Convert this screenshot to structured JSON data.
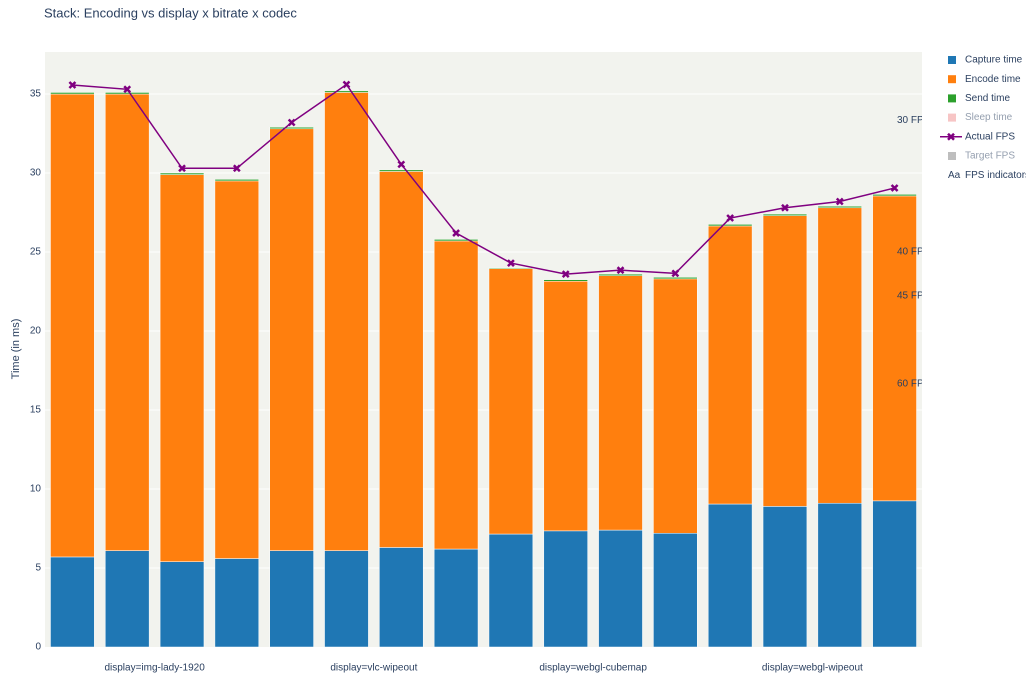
{
  "chart_data": {
    "type": "bar",
    "stacked": true,
    "title": "Stack: Encoding vs display x bitrate x codec",
    "y_label": "Time (in ms)",
    "categories": [
      null,
      null,
      null,
      null,
      null,
      null,
      null,
      null,
      null,
      null,
      null,
      null,
      null,
      null,
      null,
      null
    ],
    "groups": [
      "display=img-lady-1920",
      "display=vlc-wipeout",
      "display=webgl-cubemap",
      "display=webgl-wipeout"
    ],
    "series": [
      {
        "name": "Capture time",
        "color": "#1f77b4",
        "values": [
          5.7,
          6.1,
          5.4,
          5.6,
          6.1,
          6.1,
          6.3,
          6.2,
          7.15,
          7.35,
          7.4,
          7.2,
          9.05,
          8.9,
          9.1,
          9.25
        ]
      },
      {
        "name": "Encode time",
        "color": "#ff7f0e",
        "values": [
          29.3,
          28.9,
          24.5,
          23.9,
          26.7,
          29.0,
          23.8,
          19.5,
          16.8,
          15.8,
          16.1,
          16.1,
          17.6,
          18.4,
          18.7,
          19.3
        ]
      },
      {
        "name": "Send time",
        "color": "#2ca02c",
        "values": [
          0.1,
          0.1,
          0.1,
          0.1,
          0.1,
          0.1,
          0.1,
          0.1,
          0.05,
          0.1,
          0.1,
          0.1,
          0.1,
          0.1,
          0.1,
          0.1
        ]
      },
      {
        "name": "Sleep time",
        "color": "#f08c8c",
        "visible": false
      },
      {
        "name": "Actual FPS",
        "type": "line",
        "color": "#800080",
        "values": [
          35.57,
          35.3,
          30.3,
          30.3,
          33.2,
          35.6,
          30.55,
          26.2,
          24.3,
          23.6,
          23.85,
          23.65,
          27.15,
          27.8,
          28.2,
          29.05
        ]
      },
      {
        "name": "Target FPS",
        "color": "#7f7f7f",
        "visible": false
      },
      {
        "name": "FPS indicators",
        "type": "text",
        "color": "#2a3f5f"
      }
    ],
    "annotations": [
      {
        "text": "30 FPS",
        "y": 33.33
      },
      {
        "text": "40 FPS",
        "y": 25
      },
      {
        "text": "45 FPS",
        "y": 22.22
      },
      {
        "text": "60 FPS",
        "y": 16.67
      }
    ],
    "ylim": [
      0,
      37.66
    ],
    "yticks": [
      0,
      5,
      10,
      15,
      20,
      25,
      30,
      35
    ],
    "grid": true
  }
}
